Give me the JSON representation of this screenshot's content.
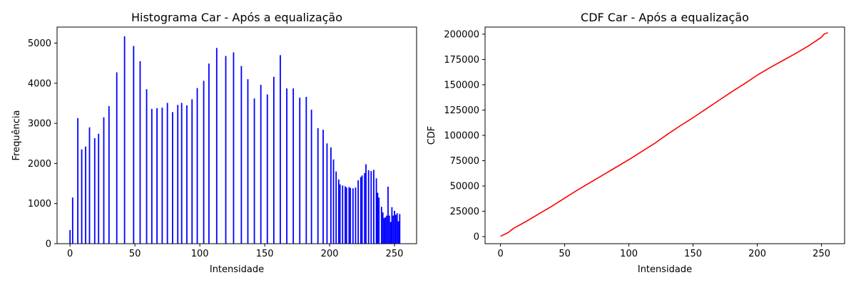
{
  "chart_data": [
    {
      "type": "bar",
      "title": "Histograma Car - Após a equalização",
      "xlabel": "Intensidade",
      "ylabel": "Frequência",
      "xlim": [
        -10,
        267
      ],
      "ylim": [
        0,
        5400
      ],
      "xticks": [
        0,
        50,
        100,
        150,
        200,
        250
      ],
      "yticks": [
        0,
        1000,
        2000,
        3000,
        4000,
        5000
      ],
      "bar_color": "#0000ff",
      "x": [
        0,
        2,
        6,
        9,
        12,
        15,
        19,
        22,
        26,
        30,
        36,
        42,
        49,
        54,
        59,
        63,
        67,
        71,
        75,
        79,
        83,
        86,
        90,
        94,
        98,
        103,
        107,
        113,
        120,
        126,
        132,
        137,
        142,
        147,
        152,
        157,
        162,
        167,
        172,
        177,
        182,
        186,
        191,
        195,
        198,
        201,
        203,
        205,
        207,
        208,
        210,
        212,
        213,
        215,
        216,
        218,
        220,
        222,
        224,
        225,
        227,
        228,
        230,
        232,
        234,
        236,
        237,
        238,
        240,
        241,
        242,
        243,
        244,
        245,
        246,
        247,
        248,
        249,
        250,
        251,
        252,
        253,
        254
      ],
      "values": [
        340,
        1150,
        3130,
        2350,
        2420,
        2900,
        2630,
        2740,
        3150,
        3430,
        4270,
        5170,
        4930,
        4550,
        3850,
        3360,
        3380,
        3390,
        3510,
        3280,
        3460,
        3510,
        3450,
        3600,
        3880,
        4060,
        4490,
        4880,
        4680,
        4770,
        4430,
        4100,
        3620,
        3960,
        3720,
        4160,
        4700,
        3870,
        3870,
        3640,
        3660,
        3340,
        2880,
        2840,
        2500,
        2400,
        2100,
        1800,
        1600,
        1480,
        1450,
        1430,
        1400,
        1410,
        1390,
        1380,
        1400,
        1580,
        1660,
        1700,
        1760,
        1980,
        1830,
        1810,
        1840,
        1630,
        1270,
        1150,
        920,
        780,
        640,
        660,
        700,
        1420,
        700,
        540,
        910,
        700,
        820,
        720,
        760,
        560,
        740
      ]
    },
    {
      "type": "line",
      "title": "CDF Car - Após a equalização",
      "xlabel": "Intensidade",
      "ylabel": "CDF",
      "xlim": [
        -12,
        268
      ],
      "ylim": [
        -7000,
        207000
      ],
      "xticks": [
        0,
        50,
        100,
        150,
        200,
        250
      ],
      "yticks": [
        0,
        25000,
        50000,
        75000,
        100000,
        125000,
        150000,
        175000,
        200000
      ],
      "line_color": "#ff0000",
      "x": [
        0,
        2,
        6,
        10,
        20,
        30,
        40,
        50,
        60,
        70,
        80,
        90,
        100,
        110,
        120,
        130,
        140,
        150,
        160,
        170,
        180,
        190,
        200,
        210,
        220,
        230,
        240,
        250,
        252,
        255
      ],
      "values": [
        340,
        1500,
        4000,
        8000,
        15000,
        22500,
        30000,
        38000,
        46000,
        53500,
        61000,
        68500,
        76000,
        84000,
        92000,
        101000,
        109500,
        117500,
        126000,
        134500,
        143000,
        151000,
        159500,
        167000,
        174000,
        181000,
        188500,
        197000,
        200000,
        201500
      ]
    }
  ]
}
